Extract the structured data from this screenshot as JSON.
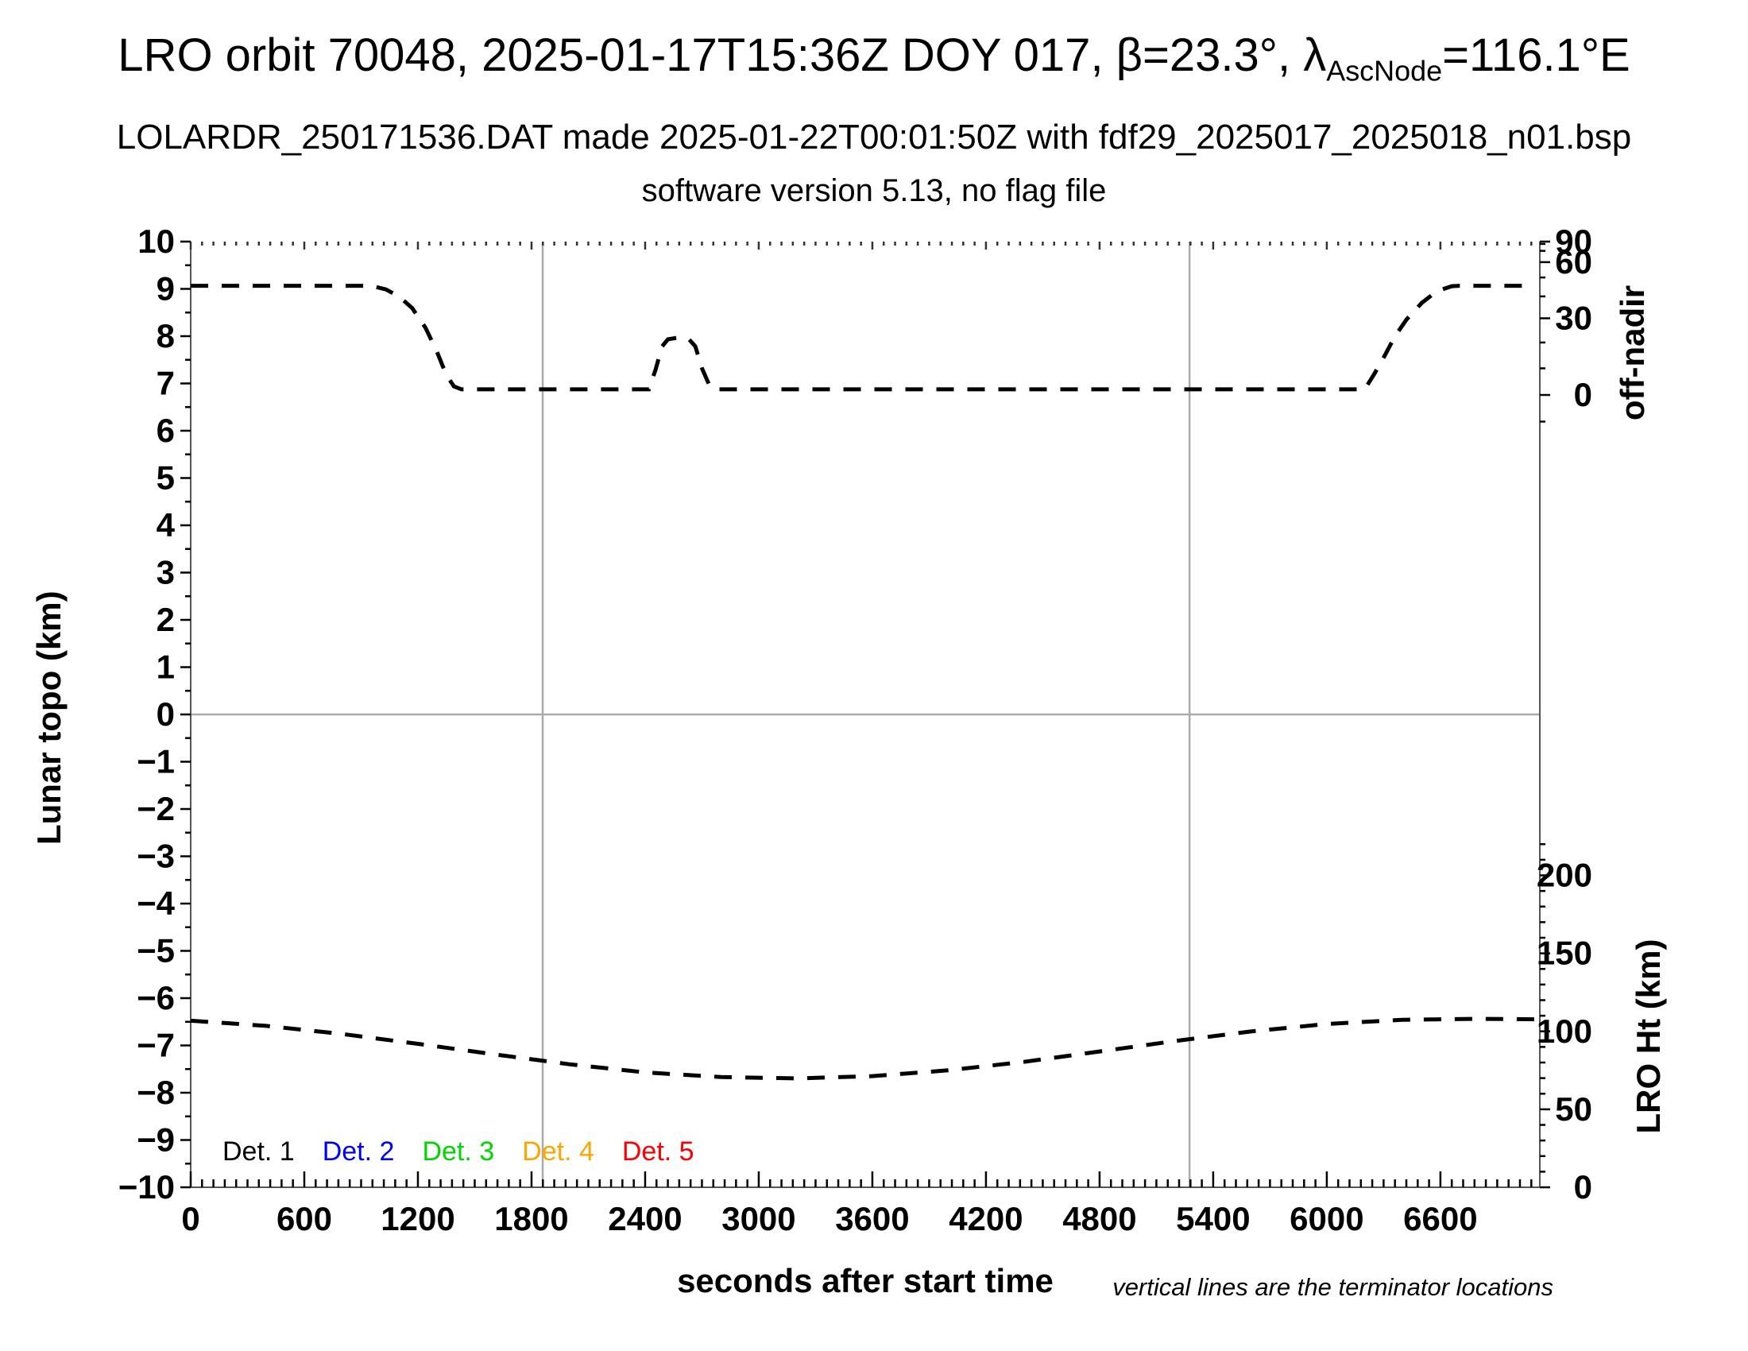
{
  "header": {
    "title_prefix": "LRO orbit 70048, 2025-01-17T15:36Z DOY 017, β=23.3°, λ",
    "title_subscript": "AscNode",
    "title_suffix": "=116.1°E",
    "subtitle": "LOLARDR_250171536.DAT made 2025-01-22T00:01:50Z with fdf29_2025017_2025018_n01.bsp",
    "subtitle2": "software version 5.13, no flag file"
  },
  "axes": {
    "x": {
      "label": "seconds after start time",
      "min": 0,
      "max": 7125,
      "major_ticks": [
        0,
        600,
        1200,
        1800,
        2400,
        3000,
        3600,
        4200,
        4800,
        5400,
        6000,
        6600
      ],
      "minor_step": 60
    },
    "y_left": {
      "label": "Lunar topo (km)",
      "min": -10,
      "max": 10,
      "major_step": 1,
      "minor_step": 0.5
    },
    "y_right_top": {
      "label": "off-nadir",
      "units": "degrees",
      "mapping": "sine",
      "major_ticks": [
        90,
        60,
        30,
        0
      ],
      "minor_ticks": [
        80,
        70,
        50,
        40,
        20,
        10,
        -10
      ]
    },
    "y_right_bottom": {
      "label": "LRO Ht (km)",
      "major_ticks": [
        200,
        150,
        100,
        50,
        0
      ],
      "minor_step": 10,
      "minor_max": 220
    }
  },
  "gridlines": {
    "zero_line_y": 0,
    "terminator_lines_s": [
      1859,
      5275
    ]
  },
  "legend": {
    "items": [
      {
        "label": "Det. 1",
        "color": "#000000"
      },
      {
        "label": "Det. 2",
        "color": "#0000ff"
      },
      {
        "label": "Det. 3",
        "color": "#00d500"
      },
      {
        "label": "Det. 4",
        "color": "#ffa500"
      },
      {
        "label": "Det. 5",
        "color": "#ff0000"
      }
    ]
  },
  "footnote": "vertical lines are the terminator locations",
  "line_style": {
    "curve_color": "#000000",
    "dash": "22 17",
    "curve_width": 5,
    "grid_color": "#aaaaaa"
  },
  "chart_data": {
    "type": "line",
    "title": "LRO orbit 70048, 2025-01-17T15:36Z DOY 017, β=23.3°, λAscNode=116.1°E",
    "xlabel": "seconds after start time",
    "ylabel": "Lunar topo (km)",
    "ylabel_right_top": "off-nadir",
    "ylabel_right_bottom": "LRO Ht (km)",
    "xlim": [
      0,
      7125
    ],
    "ylim_left": [
      -10,
      10
    ],
    "grid": "off",
    "legend_position": "bottom-left inside",
    "legend_entries": [
      "Det. 1",
      "Det. 2",
      "Det. 3",
      "Det. 4",
      "Det. 5"
    ],
    "note": "No lunar topography detector profiles are drawn; only the off-nadir angle and spacecraft height dashed curves appear.",
    "terminator_lines_s": [
      1859,
      5275
    ],
    "series": [
      {
        "name": "off-nadir angle",
        "axis": "right-top",
        "units": "deg",
        "style": "black dashed",
        "points": [
          [
            0,
            45.4
          ],
          [
            950,
            45.4
          ],
          [
            1030,
            43.5
          ],
          [
            1100,
            40.0
          ],
          [
            1170,
            34.5
          ],
          [
            1240,
            26.0
          ],
          [
            1300,
            16.5
          ],
          [
            1350,
            7.5
          ],
          [
            1390,
            3.2
          ],
          [
            1430,
            2.1
          ],
          [
            2420,
            2.1
          ],
          [
            2455,
            9.5
          ],
          [
            2490,
            18.5
          ],
          [
            2520,
            21.3
          ],
          [
            2570,
            21.9
          ],
          [
            2630,
            21.4
          ],
          [
            2665,
            18.5
          ],
          [
            2700,
            10.0
          ],
          [
            2740,
            3.5
          ],
          [
            2765,
            2.1
          ],
          [
            6200,
            2.1
          ],
          [
            6250,
            7.8
          ],
          [
            6300,
            14.1
          ],
          [
            6360,
            22.5
          ],
          [
            6420,
            29.4
          ],
          [
            6500,
            36.8
          ],
          [
            6580,
            42.5
          ],
          [
            6660,
            45.2
          ],
          [
            6700,
            45.4
          ],
          [
            7100,
            45.4
          ]
        ]
      },
      {
        "name": "LRO height",
        "axis": "right-bottom",
        "units": "km",
        "style": "black dashed",
        "points": [
          [
            0,
            106.8
          ],
          [
            400,
            103.5
          ],
          [
            800,
            98.3
          ],
          [
            1200,
            92.0
          ],
          [
            1600,
            85.3
          ],
          [
            2000,
            78.9
          ],
          [
            2400,
            73.7
          ],
          [
            2800,
            70.7
          ],
          [
            3200,
            69.8
          ],
          [
            3600,
            71.3
          ],
          [
            4000,
            75.0
          ],
          [
            4400,
            80.4
          ],
          [
            4800,
            87.1
          ],
          [
            5200,
            93.8
          ],
          [
            5600,
            99.9
          ],
          [
            6000,
            104.7
          ],
          [
            6400,
            107.4
          ],
          [
            6800,
            108.0
          ],
          [
            7100,
            107.7
          ]
        ]
      }
    ]
  }
}
